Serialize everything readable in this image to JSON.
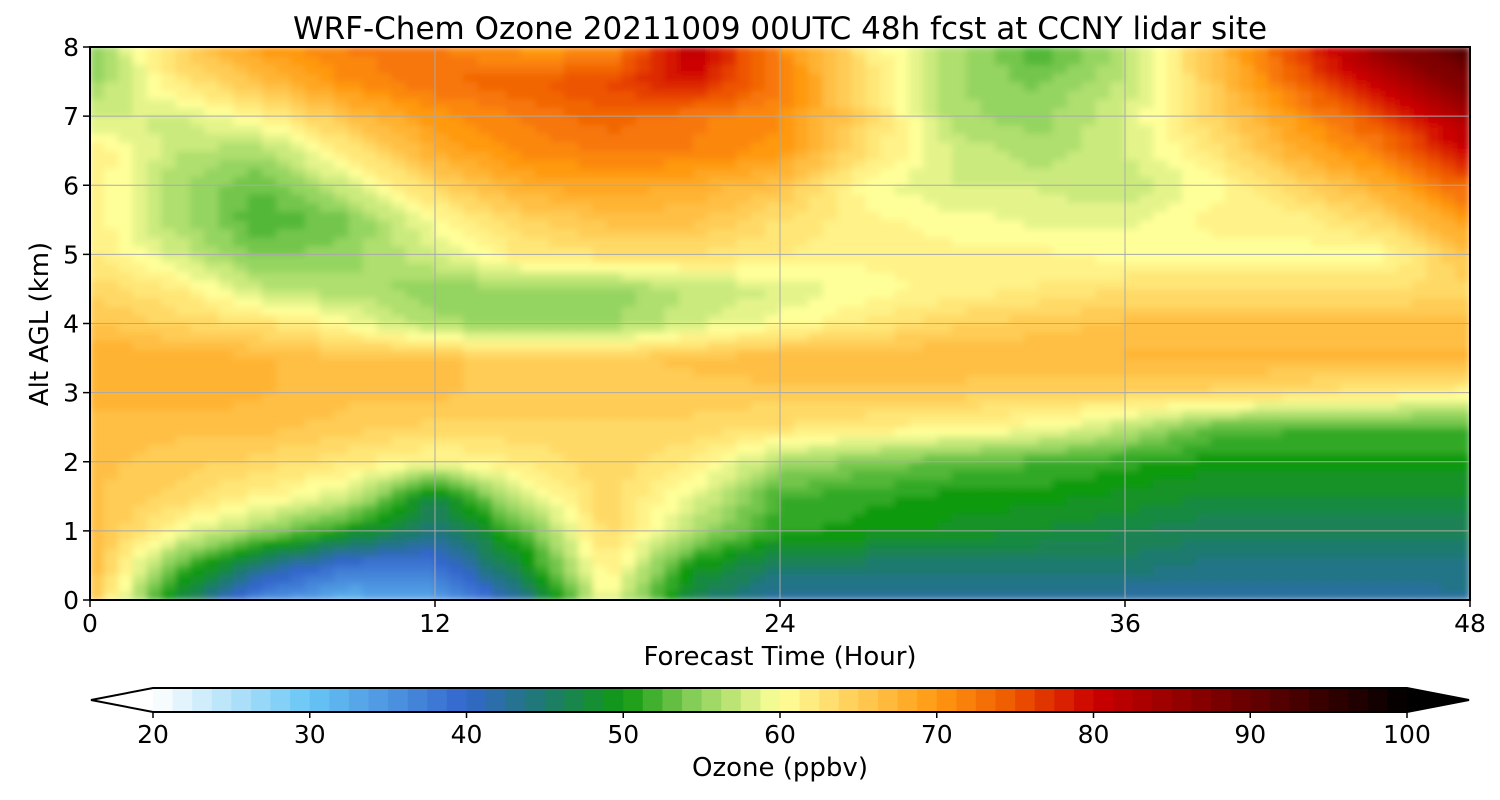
{
  "chart_data": {
    "type": "heatmap",
    "title": "WRF-Chem Ozone  20211009 00UTC 48h fcst at CCNY lidar site",
    "xlabel": "Forecast Time (Hour)",
    "ylabel": "Alt AGL (km)",
    "xlim": [
      0,
      48
    ],
    "ylim": [
      0,
      8
    ],
    "xticks": [
      0,
      12,
      24,
      36,
      48
    ],
    "yticks": [
      0,
      1,
      2,
      3,
      4,
      5,
      6,
      7,
      8
    ],
    "grid": true,
    "x": [
      0,
      3,
      6,
      9,
      12,
      15,
      18,
      21,
      24,
      27,
      30,
      33,
      36,
      39,
      42,
      45,
      48
    ],
    "y": [
      0,
      0.5,
      1,
      1.5,
      2,
      2.5,
      3,
      3.5,
      4,
      4.5,
      5,
      5.5,
      6,
      6.5,
      7,
      7.5,
      8
    ],
    "z": [
      [
        66,
        48,
        36,
        32,
        34,
        42,
        60,
        46,
        42,
        42,
        42,
        42,
        42,
        42,
        42,
        42,
        43
      ],
      [
        67,
        53,
        44,
        38,
        38,
        48,
        62,
        50,
        45,
        45,
        45,
        45,
        45,
        44,
        44,
        44,
        44
      ],
      [
        67,
        60,
        55,
        50,
        44,
        52,
        64,
        56,
        51,
        50,
        49,
        48,
        47,
        46,
        46,
        46,
        46
      ],
      [
        66,
        64,
        61,
        58,
        47,
        58,
        64,
        59,
        52,
        51,
        50,
        50,
        49,
        48,
        48,
        48,
        48
      ],
      [
        66,
        65,
        64,
        62,
        60,
        62,
        64,
        62,
        56,
        54,
        53,
        52,
        51,
        50,
        50,
        50,
        50
      ],
      [
        66,
        66,
        66,
        65,
        64,
        64,
        64,
        64,
        63,
        62,
        61,
        60,
        57,
        53,
        52,
        52,
        52
      ],
      [
        68,
        68,
        67,
        66,
        66,
        65,
        65,
        65,
        65,
        65,
        65,
        64,
        64,
        64,
        63,
        62,
        61
      ],
      [
        68,
        68,
        67,
        66,
        66,
        65,
        65,
        66,
        67,
        67,
        67,
        67,
        67,
        67,
        67,
        67,
        67
      ],
      [
        66,
        64,
        63,
        60,
        56,
        55,
        55,
        58,
        60,
        62,
        64,
        65,
        66,
        66,
        66,
        66,
        66
      ],
      [
        64,
        62,
        57,
        56,
        55,
        55,
        55,
        57,
        58,
        60,
        61,
        62,
        63,
        63,
        63,
        63,
        64
      ],
      [
        62,
        58,
        54,
        55,
        58,
        62,
        63,
        63,
        62,
        61,
        61,
        61,
        60,
        60,
        60,
        60,
        66
      ],
      [
        62,
        56,
        52,
        54,
        60,
        64,
        66,
        66,
        63,
        61,
        60,
        59,
        59,
        61,
        61,
        64,
        70
      ],
      [
        62,
        56,
        53,
        58,
        64,
        68,
        69,
        68,
        66,
        60,
        58,
        58,
        57,
        60,
        64,
        68,
        74
      ],
      [
        62,
        57,
        56,
        62,
        68,
        71,
        72,
        72,
        70,
        63,
        58,
        56,
        58,
        62,
        68,
        72,
        80
      ],
      [
        58,
        58,
        61,
        66,
        70,
        72,
        74,
        72,
        71,
        64,
        56,
        55,
        58,
        64,
        70,
        76,
        84
      ],
      [
        55,
        62,
        66,
        71,
        73,
        74,
        76,
        79,
        72,
        63,
        56,
        54,
        57,
        65,
        74,
        82,
        88
      ],
      [
        54,
        64,
        70,
        72,
        72,
        70,
        70,
        82,
        71,
        62,
        56,
        52,
        56,
        66,
        76,
        86,
        92
      ]
    ],
    "colorbar": {
      "label": "Ozone  (ppbv)",
      "min": 20,
      "max": 100,
      "ticks": [
        20,
        30,
        40,
        50,
        60,
        70,
        80,
        90,
        100
      ],
      "extend": "both",
      "stops": [
        {
          "v": 20,
          "c": "#ffffff"
        },
        {
          "v": 30,
          "c": "#67c5f5"
        },
        {
          "v": 40,
          "c": "#3366cc"
        },
        {
          "v": 45,
          "c": "#1e7a6e"
        },
        {
          "v": 50,
          "c": "#119a11"
        },
        {
          "v": 55,
          "c": "#94d460"
        },
        {
          "v": 60,
          "c": "#ffff99"
        },
        {
          "v": 65,
          "c": "#ffcc55"
        },
        {
          "v": 70,
          "c": "#ff9911"
        },
        {
          "v": 75,
          "c": "#ee5500"
        },
        {
          "v": 80,
          "c": "#cc0000"
        },
        {
          "v": 90,
          "c": "#660000"
        },
        {
          "v": 100,
          "c": "#000000"
        }
      ]
    }
  }
}
